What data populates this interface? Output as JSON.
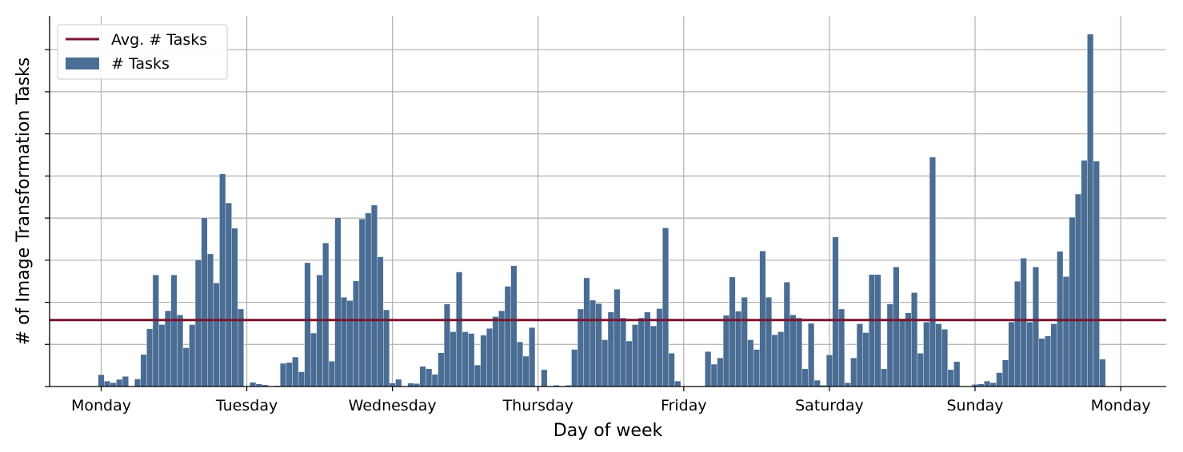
{
  "chart_data": {
    "type": "bar",
    "title": "",
    "xlabel": "Day of week",
    "ylabel": "# of Image Transformation Tasks",
    "x_tick_labels": [
      "Monday",
      "Tuesday",
      "Wednesday",
      "Thursday",
      "Friday",
      "Saturday",
      "Sunday",
      "Monday"
    ],
    "x_tick_positions": [
      0,
      24,
      48,
      72,
      96,
      120,
      144,
      168
    ],
    "xlim": [
      -8.5,
      175.5
    ],
    "ylim": [
      0,
      8.8
    ],
    "y_ticks": [
      0,
      1,
      2,
      3,
      4,
      5,
      6,
      7,
      8
    ],
    "y_tick_labels_shown": false,
    "grid": true,
    "legend_position": "top-left",
    "bar_color": "#4a6d94",
    "avg_color": "#7b1530",
    "series": [
      {
        "name": "# Tasks",
        "type": "bar",
        "values": [
          0.28,
          0.13,
          0.09,
          0.17,
          0.24,
          0,
          0.18,
          0.76,
          1.37,
          2.65,
          1.47,
          1.8,
          2.65,
          1.7,
          0.92,
          1.47,
          3.01,
          4.01,
          3.15,
          2.46,
          5.05,
          4.36,
          3.76,
          1.84,
          0,
          0.1,
          0.06,
          0.04,
          0,
          0.02,
          0.55,
          0.57,
          0.7,
          0.35,
          2.94,
          1.27,
          2.65,
          3.41,
          0.6,
          4.01,
          2.12,
          2.04,
          2.51,
          3.98,
          4.12,
          4.31,
          3.08,
          1.82,
          0.08,
          0.17,
          0,
          0.08,
          0.07,
          0.48,
          0.42,
          0.29,
          0.8,
          1.96,
          1.3,
          2.72,
          1.3,
          1.26,
          0.51,
          1.22,
          1.38,
          1.66,
          1.8,
          2.38,
          2.87,
          1.06,
          0.72,
          1.4,
          0,
          0.4,
          0,
          0.03,
          0,
          0.03,
          0.88,
          1.84,
          2.58,
          2.05,
          1.97,
          1.11,
          1.77,
          2.31,
          1.63,
          1.08,
          1.47,
          1.63,
          1.77,
          1.44,
          1.85,
          3.77,
          0.79,
          0.13,
          0,
          0,
          0,
          0,
          0.83,
          0.53,
          0.68,
          1.69,
          2.6,
          1.79,
          2.12,
          1.11,
          0.88,
          3.22,
          2.12,
          1.23,
          1.3,
          2.48,
          1.7,
          1.63,
          0.42,
          1.5,
          0.15,
          0.03,
          0.75,
          3.55,
          1.84,
          0.09,
          0.68,
          1.49,
          1.28,
          2.66,
          2.66,
          0.42,
          1.96,
          2.84,
          1.61,
          1.75,
          2.23,
          0.79,
          1.53,
          5.45,
          1.49,
          1.36,
          0.4,
          0.59,
          0,
          0,
          0.05,
          0.06,
          0.13,
          0.09,
          0.33,
          0.63,
          1.53,
          2.5,
          3.05,
          1.53,
          2.84,
          1.14,
          1.2,
          1.49,
          3.21,
          2.61,
          4.02,
          4.57,
          5.37,
          8.37,
          5.35,
          0.65
        ]
      },
      {
        "name": "Avg. # Tasks",
        "type": "line",
        "value": 1.58
      }
    ]
  }
}
